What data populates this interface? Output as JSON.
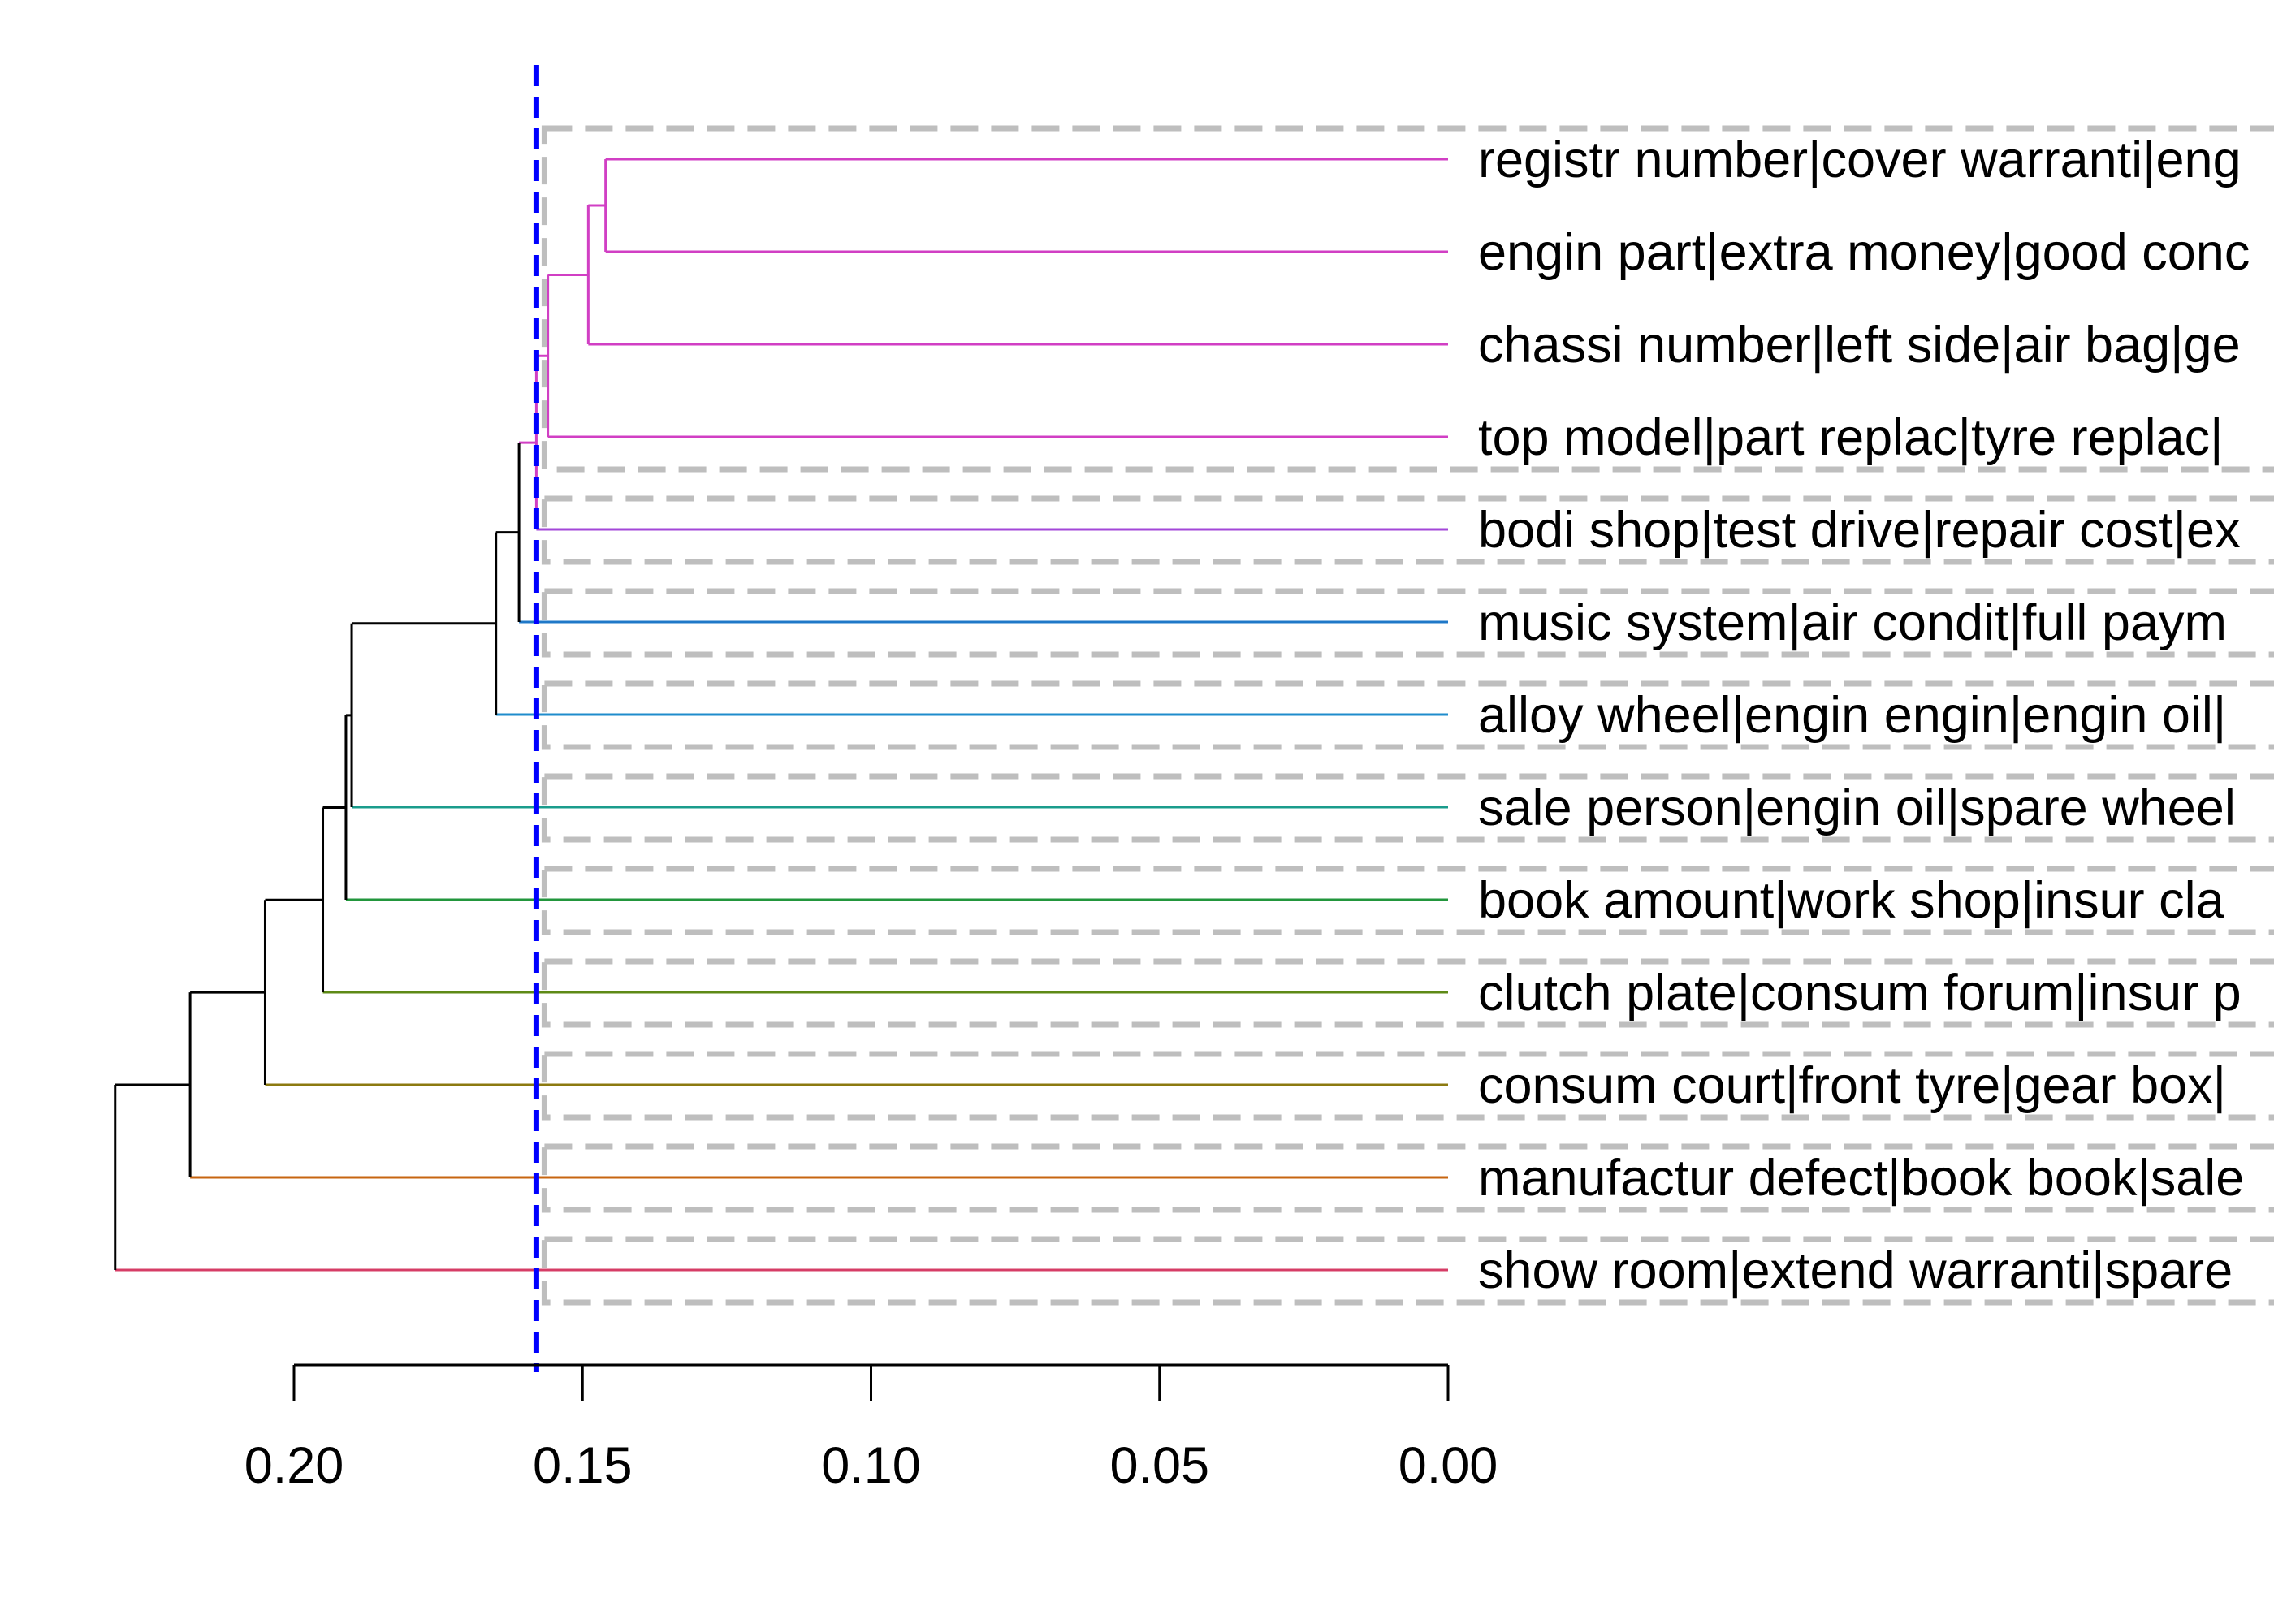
{
  "chart_data": {
    "type": "dendrogram",
    "orientation": "horizontal",
    "x_axis": {
      "reversed": true,
      "xlim": [
        0.2,
        0.0
      ],
      "ticks": [
        0.2,
        0.15,
        0.1,
        0.05,
        0.0
      ],
      "tick_labels": [
        "0.20",
        "0.15",
        "0.10",
        "0.05",
        "0.00"
      ]
    },
    "cut_height": 0.158,
    "cut_line_color": "#0000ff",
    "box_color": "#bebebe",
    "leaves": [
      {
        "label": "registr number|cover warranti|eng",
        "color": "#d13fc4"
      },
      {
        "label": "engin part|extra money|good conc",
        "color": "#d13fc4"
      },
      {
        "label": "chassi number|left side|air bag|ge",
        "color": "#d13fc4"
      },
      {
        "label": "top model|part replac|tyre replac|",
        "color": "#d13fc4"
      },
      {
        "label": "bodi shop|test drive|repair cost|ex",
        "color": "#a347d8"
      },
      {
        "label": "music system|air condit|full paym",
        "color": "#1f78c8"
      },
      {
        "label": "alloy wheel|engin engin|engin oil|",
        "color": "#1f8ccc"
      },
      {
        "label": "sale person|engin oil|spare wheel",
        "color": "#1a9c8c"
      },
      {
        "label": "book amount|work shop|insur cla",
        "color": "#22963c"
      },
      {
        "label": "clutch plate|consum forum|insur p",
        "color": "#5e8a16"
      },
      {
        "label": "consum court|front tyre|gear box|",
        "color": "#8c7a10"
      },
      {
        "label": "manufactur defect|book book|sale",
        "color": "#c76510"
      },
      {
        "label": "show room|extend warranti|spare",
        "color": "#d63c66"
      }
    ],
    "merges": [
      {
        "left": "leaf:0",
        "right": "leaf:1",
        "height": 0.146,
        "color": "#d13fc4"
      },
      {
        "left": "leaf:2",
        "right": "node:0",
        "height": 0.149,
        "color": "#d13fc4"
      },
      {
        "left": "leaf:3",
        "right": "node:1",
        "height": 0.156,
        "color": "#d13fc4"
      },
      {
        "left": "node:2",
        "right": "leaf:4",
        "height": 0.158,
        "color": "#d13fc4"
      },
      {
        "left": "node:3",
        "right": "leaf:5",
        "height": 0.161,
        "color": "#000000"
      },
      {
        "left": "node:4",
        "right": "leaf:6",
        "height": 0.165,
        "color": "#000000"
      },
      {
        "left": "node:5",
        "right": "leaf:7",
        "height": 0.19,
        "color": "#000000"
      },
      {
        "left": "node:6",
        "right": "leaf:8",
        "height": 0.191,
        "color": "#000000"
      },
      {
        "left": "node:7",
        "right": "leaf:9",
        "height": 0.195,
        "color": "#000000"
      },
      {
        "left": "node:8",
        "right": "leaf:10",
        "height": 0.205,
        "color": "#000000"
      },
      {
        "left": "node:9",
        "right": "leaf:11",
        "height": 0.218,
        "color": "#000000"
      },
      {
        "left": "node:10",
        "right": "leaf:12",
        "height": 0.231,
        "color": "#000000"
      }
    ]
  }
}
